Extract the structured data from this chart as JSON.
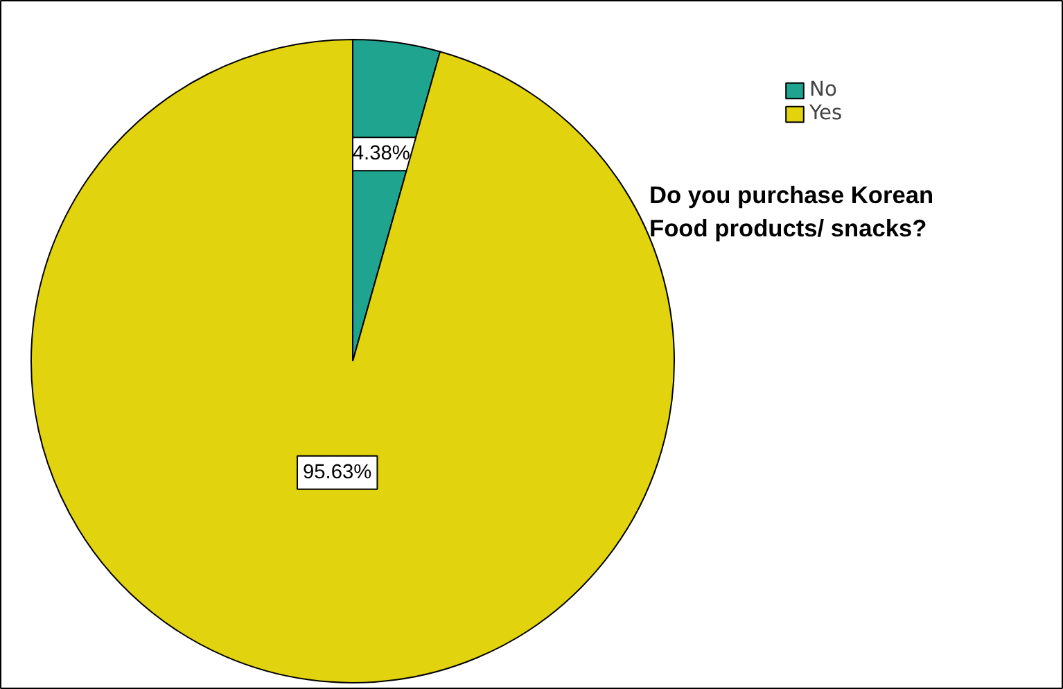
{
  "chart_data": {
    "type": "pie",
    "title": "Do you purchase Korean Food products/ snacks?",
    "categories": [
      "No",
      "Yes"
    ],
    "values": [
      4.38,
      95.63
    ],
    "colors": [
      "#1fa58f",
      "#e1d30e"
    ],
    "value_labels": [
      "4.38%",
      "95.63%"
    ],
    "legend": "top right"
  }
}
